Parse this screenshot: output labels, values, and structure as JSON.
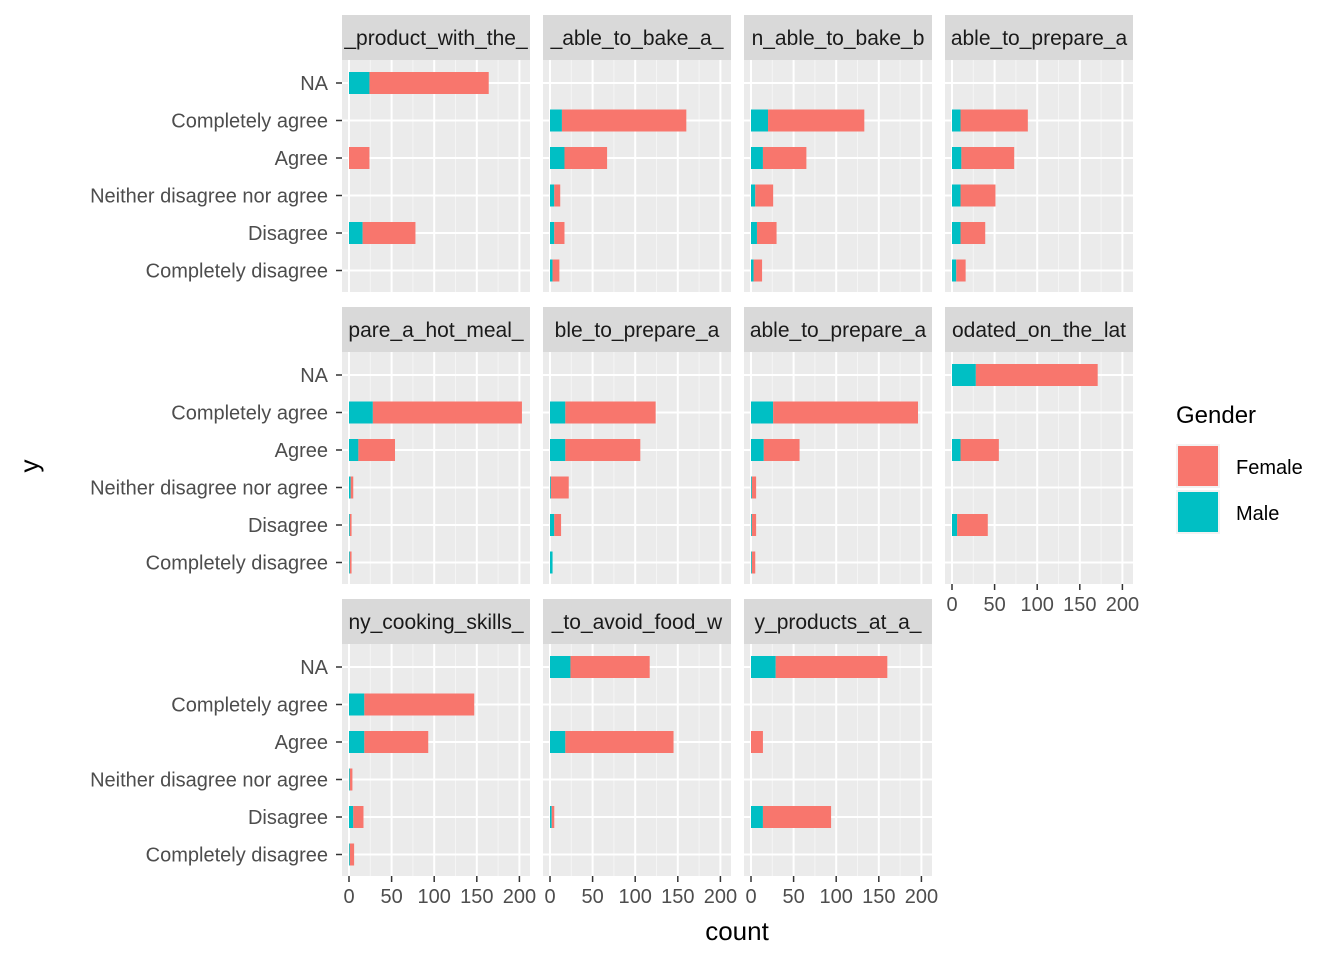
{
  "chart_data": {
    "type": "bar",
    "orientation": "horizontal",
    "stacked": true,
    "xlabel": "count",
    "ylabel": "y",
    "xlim": [
      0,
      210
    ],
    "x_ticks": [
      0,
      50,
      100,
      150,
      200
    ],
    "x_tick_labels": [
      "0",
      "50",
      "100",
      "150",
      "200"
    ],
    "categories": [
      "NA",
      "Completely agree",
      "Agree",
      "Neither disagree nor agree",
      "Disagree",
      "Completely disagree"
    ],
    "grid": true,
    "legend": {
      "title": "Gender",
      "position": "right",
      "entries": [
        {
          "name": "Female",
          "color": "#F8766D"
        },
        {
          "name": "Male",
          "color": "#00BFC4"
        }
      ]
    },
    "series_colors": {
      "Female": "#F8766D",
      "Male": "#00BFC4"
    },
    "facets": [
      {
        "label": "_product_with_the_",
        "male": [
          24,
          0,
          0,
          0,
          16,
          0
        ],
        "female": [
          140,
          0,
          24,
          0,
          62,
          0
        ]
      },
      {
        "label": "_able_to_bake_a_",
        "male": [
          0,
          14,
          17,
          5,
          5,
          3
        ],
        "female": [
          0,
          146,
          50,
          7,
          12,
          8
        ]
      },
      {
        "label": "n_able_to_bake_b",
        "male": [
          0,
          20,
          14,
          5,
          7,
          3
        ],
        "female": [
          0,
          113,
          51,
          21,
          23,
          10
        ]
      },
      {
        "label": "able_to_prepare_a",
        "male": [
          0,
          10,
          11,
          10,
          10,
          5
        ],
        "female": [
          0,
          79,
          62,
          41,
          29,
          11
        ]
      },
      {
        "label": "pare_a_hot_meal_",
        "male": [
          0,
          28,
          11,
          2,
          1,
          1
        ],
        "female": [
          0,
          175,
          43,
          3,
          2,
          2
        ]
      },
      {
        "label": "ble_to_prepare_a",
        "male": [
          0,
          18,
          18,
          1,
          5,
          3
        ],
        "female": [
          0,
          106,
          88,
          21,
          8,
          0
        ]
      },
      {
        "label": "able_to_prepare_a",
        "male": [
          0,
          26,
          15,
          1,
          1,
          1
        ],
        "female": [
          0,
          170,
          42,
          5,
          5,
          4
        ]
      },
      {
        "label": "odated_on_the_lat",
        "male": [
          28,
          0,
          10,
          0,
          6,
          0
        ],
        "female": [
          143,
          0,
          45,
          0,
          36,
          0
        ]
      },
      {
        "label": "ny_cooking_skills_",
        "male": [
          0,
          18,
          18,
          1,
          5,
          1
        ],
        "female": [
          0,
          129,
          75,
          3,
          12,
          5
        ]
      },
      {
        "label": "_to_avoid_food_w",
        "male": [
          24,
          0,
          18,
          0,
          2,
          0
        ],
        "female": [
          93,
          0,
          127,
          0,
          3,
          0
        ]
      },
      {
        "label": "y_products_at_a_",
        "male": [
          29,
          0,
          0,
          0,
          14,
          0
        ],
        "female": [
          131,
          0,
          14,
          0,
          80,
          0
        ]
      }
    ]
  }
}
